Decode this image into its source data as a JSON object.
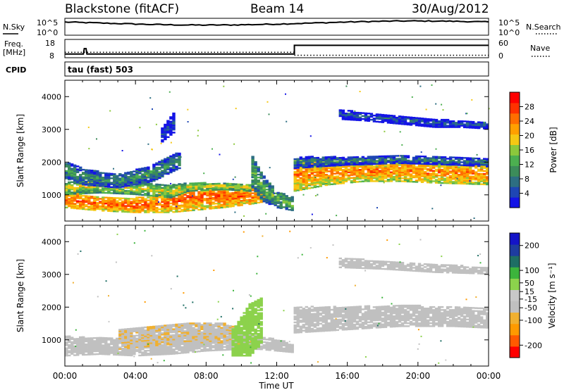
{
  "header": {
    "station": "Blackstone (fitACF)",
    "beam": "Beam 14",
    "date": "30/Aug/2012"
  },
  "strips": {
    "nsky_label": "N.Sky",
    "nsearch_label": "N.Search",
    "freq_label_1": "Freq.",
    "freq_label_2": "[MHz]",
    "nave_label": "Nave",
    "cpid_label": "CPID",
    "cpid_text": "tau (fast) 503",
    "noise_ticks": [
      "10^5",
      "10^0"
    ],
    "freq_ticks": [
      "18",
      "8"
    ],
    "nave_ticks": [
      "60",
      "0"
    ]
  },
  "colors": {
    "power_scale": [
      "#1414e6",
      "#1e46b4",
      "#2d6e82",
      "#3c8c5a",
      "#4caf50",
      "#8cc83c",
      "#f5c814",
      "#ffa000",
      "#ff6e00",
      "#ff3200",
      "#ff0000"
    ],
    "velocity_scale": [
      "#ff0000",
      "#ff5a00",
      "#ff9a00",
      "#f0b030",
      "#c0c0c0",
      "#c8c8c8",
      "#8cd24c",
      "#3cb43c",
      "#1e6e64",
      "#1e3ca0",
      "#1414c8"
    ],
    "ground_scatter": "#c0c0c0"
  },
  "chart_data": [
    {
      "type": "heatmap",
      "name": "power",
      "xlabel": "Time UT",
      "ylabel": "Slant Range [km]",
      "xlim": [
        0,
        24
      ],
      "ylim": [
        200,
        4500
      ],
      "x_ticks": [
        "00:00",
        "04:00",
        "08:00",
        "12:00",
        "16:00",
        "20:00",
        "00:00"
      ],
      "y_ticks": [
        1000,
        2000,
        3000,
        4000
      ],
      "colorbar": {
        "label": "Power [dB]",
        "ticks": [
          4,
          8,
          12,
          16,
          20,
          24,
          28
        ],
        "range": [
          0,
          32
        ]
      },
      "bands": [
        {
          "t": [
            0,
            1,
            2,
            4,
            6,
            7,
            9,
            10.5,
            11.5
          ],
          "lo": [
            600,
            550,
            500,
            450,
            450,
            500,
            600,
            700,
            800
          ],
          "hi": [
            1100,
            1000,
            950,
            900,
            1000,
            1300,
            1300,
            1200,
            1100
          ],
          "dB": 26
        },
        {
          "t": [
            0,
            2,
            4,
            6,
            7,
            9,
            10.5
          ],
          "lo": [
            1000,
            1050,
            1000,
            900,
            1100,
            1150,
            1100
          ],
          "hi": [
            1400,
            1400,
            1350,
            1300,
            1350,
            1350,
            1300
          ],
          "dB": 18
        },
        {
          "t": [
            0,
            1,
            3,
            5,
            6.5
          ],
          "lo": [
            1500,
            1300,
            1200,
            1400,
            1800
          ],
          "hi": [
            2000,
            1800,
            1600,
            1900,
            2300
          ],
          "dB": 11
        },
        {
          "t": [
            10.5,
            11.2,
            12,
            13
          ],
          "lo": [
            1300,
            800,
            600,
            500
          ],
          "hi": [
            2300,
            1600,
            1100,
            900
          ],
          "dB": 14
        },
        {
          "t": [
            13,
            15,
            17,
            19,
            21,
            24
          ],
          "lo": [
            1100,
            1300,
            1400,
            1400,
            1350,
            1300
          ],
          "hi": [
            2100,
            2000,
            2000,
            2050,
            2000,
            1950
          ],
          "dB": 24
        },
        {
          "t": [
            13,
            16,
            19,
            22,
            24
          ],
          "lo": [
            1800,
            1900,
            1950,
            1900,
            1850
          ],
          "hi": [
            2150,
            2150,
            2200,
            2150,
            2100
          ],
          "dB": 9
        },
        {
          "t": [
            15.5,
            17,
            19,
            21,
            22.5,
            24
          ],
          "lo": [
            3300,
            3250,
            3150,
            3050,
            3050,
            3000
          ],
          "hi": [
            3600,
            3500,
            3400,
            3300,
            3250,
            3200
          ],
          "dB": 6
        },
        {
          "t": [
            5.5,
            6.2
          ],
          "lo": [
            2600,
            2900
          ],
          "hi": [
            3000,
            3500
          ],
          "dB": 5
        }
      ]
    },
    {
      "type": "heatmap",
      "name": "velocity",
      "xlabel": "Time UT",
      "ylabel": "Slant Range [km]",
      "xlim": [
        0,
        24
      ],
      "ylim": [
        200,
        4500
      ],
      "x_ticks": [
        "00:00",
        "04:00",
        "08:00",
        "12:00",
        "16:00",
        "20:00",
        "00:00"
      ],
      "y_ticks": [
        1000,
        2000,
        3000,
        4000
      ],
      "colorbar": {
        "label": "Velocity [m s⁻¹]",
        "ticks": [
          -200,
          -100,
          -50,
          -15,
          15,
          50,
          100,
          200
        ],
        "range": [
          -250,
          250
        ]
      },
      "bands": [
        {
          "t": [
            0,
            2,
            4,
            6,
            8,
            10,
            11,
            13
          ],
          "lo": [
            500,
            550,
            500,
            550,
            650,
            700,
            700,
            600
          ],
          "hi": [
            1100,
            1050,
            1000,
            1100,
            1200,
            1200,
            1100,
            900
          ],
          "v": 0
        },
        {
          "t": [
            3,
            5,
            7,
            9,
            10
          ],
          "lo": [
            700,
            800,
            900,
            900,
            800
          ],
          "hi": [
            1300,
            1400,
            1500,
            1500,
            1300
          ],
          "v": -60
        },
        {
          "t": [
            9.5,
            10.5,
            11.2
          ],
          "lo": [
            500,
            500,
            900
          ],
          "hi": [
            1300,
            2100,
            2300
          ],
          "v": 40
        },
        {
          "t": [
            13,
            16,
            19,
            22,
            24
          ],
          "lo": [
            1200,
            1300,
            1400,
            1400,
            1350
          ],
          "hi": [
            2000,
            2000,
            2050,
            2000,
            1950
          ],
          "v": 0
        },
        {
          "t": [
            15.5,
            18,
            21,
            24
          ],
          "lo": [
            3200,
            3150,
            3050,
            3000
          ],
          "hi": [
            3500,
            3400,
            3300,
            3200
          ],
          "v": 0
        }
      ]
    }
  ]
}
